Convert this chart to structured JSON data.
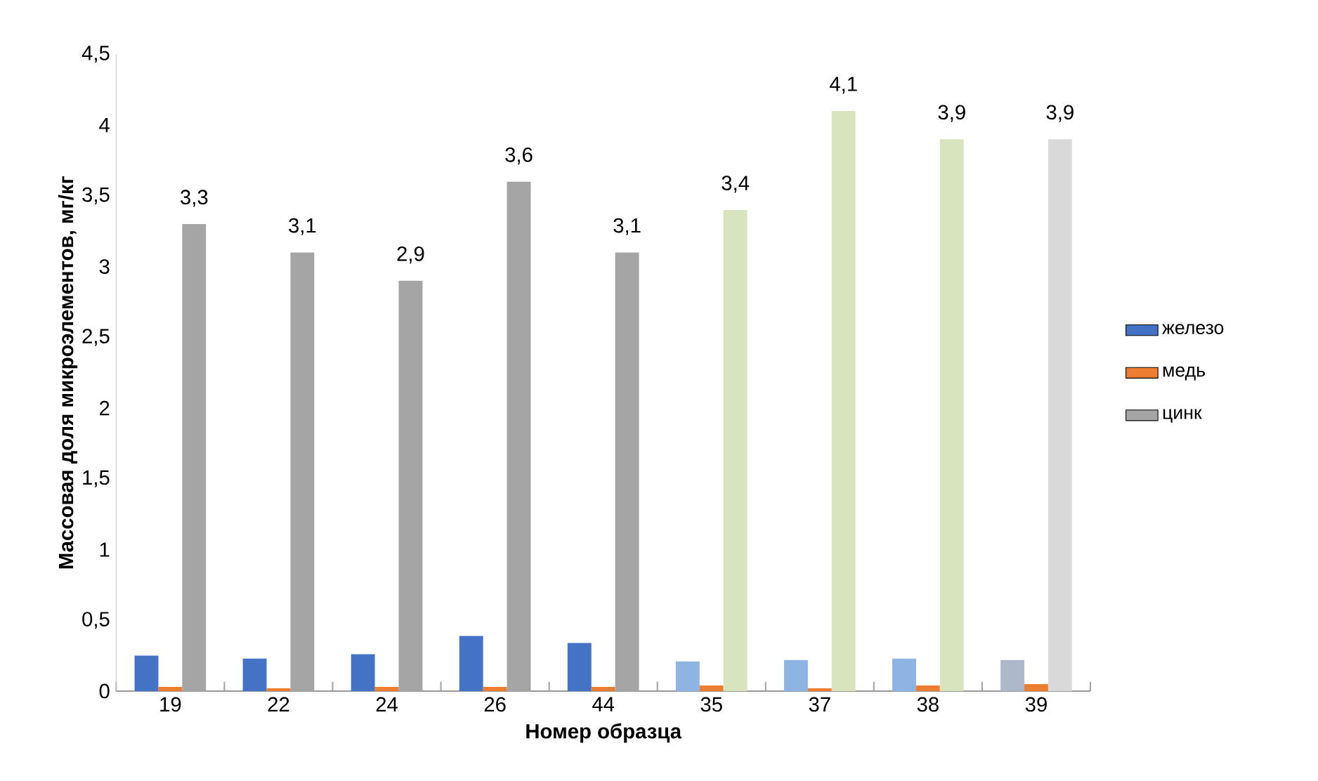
{
  "chart_data": {
    "type": "bar",
    "xlabel": "Номер образца",
    "ylabel": "Массовая доля микроэлементов, мг/кг",
    "categories": [
      "19",
      "22",
      "24",
      "26",
      "44",
      "35",
      "37",
      "38",
      "39"
    ],
    "series": [
      {
        "name": "железо",
        "color": "#4472c4",
        "colors": [
          "#4472c4",
          "#4472c4",
          "#4472c4",
          "#4472c4",
          "#4472c4",
          "#8eb4e3",
          "#8eb4e3",
          "#8eb4e3",
          "#adb9ca"
        ],
        "values": [
          0.25,
          0.23,
          0.26,
          0.39,
          0.34,
          0.21,
          0.22,
          0.23,
          0.22
        ]
      },
      {
        "name": "медь",
        "color": "#ed7d31",
        "colors": [
          "#ed7d31",
          "#ed7d31",
          "#ed7d31",
          "#ed7d31",
          "#ed7d31",
          "#ed7d31",
          "#ed7d31",
          "#ed7d31",
          "#ed7d31"
        ],
        "values": [
          0.03,
          0.02,
          0.03,
          0.03,
          0.03,
          0.04,
          0.02,
          0.04,
          0.05
        ]
      },
      {
        "name": "цинк",
        "color": "#a5a5a5",
        "colors": [
          "#a5a5a5",
          "#a5a5a5",
          "#a5a5a5",
          "#a5a5a5",
          "#a5a5a5",
          "#d7e4bd",
          "#d7e4bd",
          "#d7e4bd",
          "#d9d9d9"
        ],
        "values": [
          3.3,
          3.1,
          2.9,
          3.6,
          3.1,
          3.4,
          4.1,
          3.9,
          3.9
        ],
        "value_labels": [
          "3,3",
          "3,1",
          "2,9",
          "3,6",
          "3,1",
          "3,4",
          "4,1",
          "3,9",
          "3,9"
        ]
      }
    ],
    "ylim": [
      0,
      4.5
    ],
    "yticks": [
      0,
      {
        "value": 0.5,
        "label": "0,5"
      },
      1,
      {
        "value": 1.5,
        "label": "1,5"
      },
      2,
      {
        "value": 2.5,
        "label": "2,5"
      },
      3,
      {
        "value": 3.5,
        "label": "3,5"
      },
      4,
      {
        "value": 4.5,
        "label": "4,5"
      }
    ],
    "legend": "right",
    "grid": false
  }
}
